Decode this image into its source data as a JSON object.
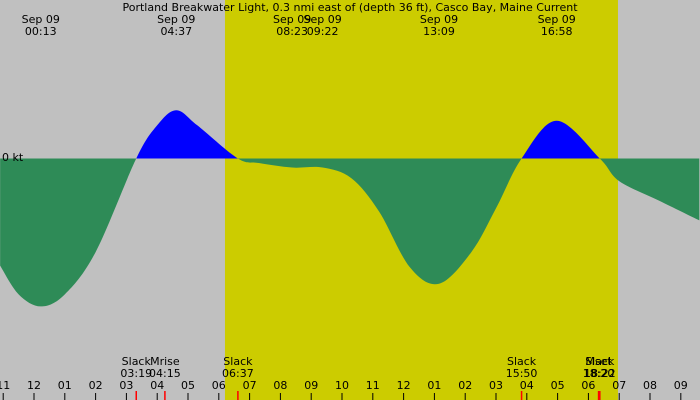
{
  "chart_data": {
    "type": "area",
    "title": "Portland Breakwater Light, 0.3 nmi east of (depth 36 ft), Casco Bay, Maine Current",
    "zero_label": "0 kt",
    "x": [
      -1.1,
      -0.5,
      0.22,
      1.0,
      2.0,
      3.32,
      4.0,
      4.62,
      5.3,
      6.62,
      7.3,
      8.38,
      9.37,
      10.3,
      11.2,
      12.2,
      13.15,
      14.2,
      15.0,
      15.83,
      16.97,
      18.37,
      19.0,
      20.3,
      21.6
    ],
    "values": [
      -0.71,
      -0.9,
      -0.98,
      -0.9,
      -0.62,
      0,
      0.22,
      0.32,
      0.22,
      0,
      -0.03,
      -0.06,
      -0.06,
      -0.13,
      -0.35,
      -0.72,
      -0.83,
      -0.62,
      -0.33,
      0,
      0.25,
      0,
      -0.15,
      -0.28,
      -0.41
    ],
    "flood_color": "#0000ff",
    "ebb_color": "#2e8b57",
    "background_color": "#c0c0c0",
    "daylight_color": "#cccc00",
    "daylight": [
      6.2,
      18.96
    ],
    "xlim": [
      -1.104,
      21.623
    ],
    "ylim": [
      -1.6,
      1.05
    ],
    "xticks": [
      {
        "value": -1,
        "label": "11"
      },
      {
        "value": 0,
        "label": "12"
      },
      {
        "value": 1,
        "label": "01"
      },
      {
        "value": 2,
        "label": "02"
      },
      {
        "value": 3,
        "label": "03"
      },
      {
        "value": 4,
        "label": "04"
      },
      {
        "value": 5,
        "label": "05"
      },
      {
        "value": 6,
        "label": "06"
      },
      {
        "value": 7,
        "label": "07"
      },
      {
        "value": 8,
        "label": "08"
      },
      {
        "value": 9,
        "label": "09"
      },
      {
        "value": 10,
        "label": "10"
      },
      {
        "value": 11,
        "label": "11"
      },
      {
        "value": 12,
        "label": "12"
      },
      {
        "value": 13,
        "label": "01"
      },
      {
        "value": 14,
        "label": "02"
      },
      {
        "value": 15,
        "label": "03"
      },
      {
        "value": 16,
        "label": "04"
      },
      {
        "value": 17,
        "label": "05"
      },
      {
        "value": 18,
        "label": "06"
      },
      {
        "value": 19,
        "label": "07"
      },
      {
        "value": 20,
        "label": "08"
      },
      {
        "value": 21,
        "label": "09"
      }
    ],
    "extremes": [
      {
        "date": "Sep 09",
        "time": "00:13",
        "x": 0.22
      },
      {
        "date": "Sep 09",
        "time": "04:37",
        "x": 4.62
      },
      {
        "date": "Sep 09",
        "time": "08:23",
        "x": 8.38
      },
      {
        "date": "Sep 09",
        "time": "09:22",
        "x": 9.37
      },
      {
        "date": "Sep 09",
        "time": "13:09",
        "x": 13.15
      },
      {
        "date": "Sep 09",
        "time": "16:58",
        "x": 16.97
      }
    ],
    "events": [
      {
        "label": "Slack",
        "time": "03:19",
        "x": 3.32
      },
      {
        "label": "Mrise",
        "time": "04:15",
        "x": 4.25
      },
      {
        "label": "Slack",
        "time": "06:37",
        "x": 6.62
      },
      {
        "label": "Slack",
        "time": "15:50",
        "x": 15.83
      },
      {
        "label": "Mset",
        "time": "18:20",
        "x": 18.33
      },
      {
        "label": "Slack",
        "time": "18:22",
        "x": 18.37
      }
    ],
    "event_color": "#ff0000"
  }
}
